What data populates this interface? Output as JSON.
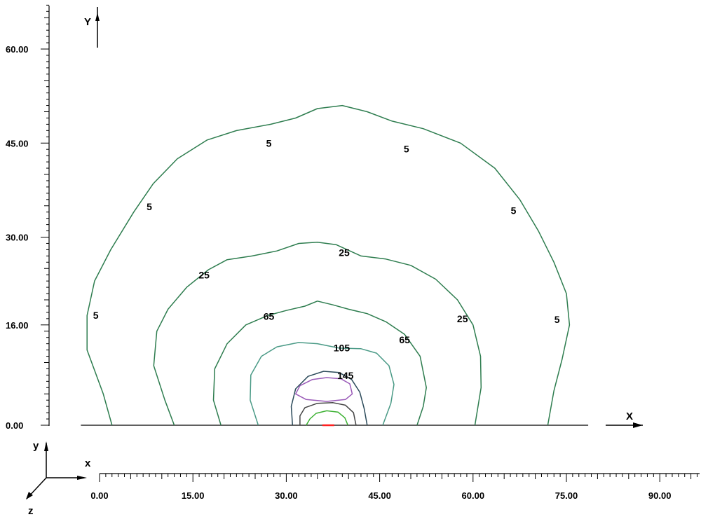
{
  "chart_data": {
    "type": "contour",
    "title": "",
    "xlabel": "X",
    "ylabel": "Y",
    "xlim": [
      -2,
      96
    ],
    "ylim": [
      0,
      67
    ],
    "x_ticks": [
      0,
      15,
      30,
      45,
      60,
      75,
      90
    ],
    "x_tick_labels": [
      "0.00",
      "15.00",
      "30.00",
      "45.00",
      "60.00",
      "75.00",
      "90.00"
    ],
    "y_ticks": [
      0,
      16,
      30,
      45,
      60
    ],
    "y_tick_labels": [
      "0.00",
      "16.00",
      "30.00",
      "45.00",
      "60.00"
    ],
    "series": [
      {
        "name": "5",
        "color": "#2e7d4f",
        "points": [
          [
            2,
            0
          ],
          [
            0.6,
            5
          ],
          [
            -2,
            12
          ],
          [
            -2,
            17.5
          ],
          [
            -0.8,
            23
          ],
          [
            1.8,
            28
          ],
          [
            5.5,
            34
          ],
          [
            8.6,
            38.5
          ],
          [
            12.5,
            42.5
          ],
          [
            17.3,
            45.5
          ],
          [
            22,
            47
          ],
          [
            27.5,
            48
          ],
          [
            31.5,
            49
          ],
          [
            35,
            50.5
          ],
          [
            39,
            51
          ],
          [
            43,
            50
          ],
          [
            47,
            48.5
          ],
          [
            52,
            47.3
          ],
          [
            58,
            45
          ],
          [
            63.5,
            41
          ],
          [
            67.5,
            36
          ],
          [
            70.5,
            31
          ],
          [
            73,
            26
          ],
          [
            75,
            21
          ],
          [
            75.5,
            16
          ],
          [
            74.3,
            10.5
          ],
          [
            73,
            5.5
          ],
          [
            72,
            0
          ]
        ]
      },
      {
        "name": "25",
        "color": "#2e7d4f",
        "points": [
          [
            12,
            0
          ],
          [
            10.5,
            4
          ],
          [
            8.7,
            9.5
          ],
          [
            9.2,
            15
          ],
          [
            11,
            18.5
          ],
          [
            14,
            22
          ],
          [
            17.5,
            24.8
          ],
          [
            20.5,
            26.4
          ],
          [
            24.5,
            27
          ],
          [
            28.5,
            27.8
          ],
          [
            32,
            29
          ],
          [
            35,
            29.2
          ],
          [
            38,
            28.8
          ],
          [
            42,
            27
          ],
          [
            46,
            26.5
          ],
          [
            50,
            25.5
          ],
          [
            54,
            23.3
          ],
          [
            57.5,
            20
          ],
          [
            60,
            16
          ],
          [
            61.2,
            11
          ],
          [
            61.3,
            6
          ],
          [
            60.3,
            0
          ]
        ]
      },
      {
        "name": "65",
        "color": "#2e7d4f",
        "points": [
          [
            19.5,
            0
          ],
          [
            18.3,
            4
          ],
          [
            18.5,
            9
          ],
          [
            20.5,
            13
          ],
          [
            23.5,
            16
          ],
          [
            27,
            17.5
          ],
          [
            30,
            18.3
          ],
          [
            33,
            19
          ],
          [
            35,
            19.8
          ],
          [
            37.5,
            19.2
          ],
          [
            40,
            18.5
          ],
          [
            43,
            17.8
          ],
          [
            46,
            16.5
          ],
          [
            49,
            14.5
          ],
          [
            51.5,
            11
          ],
          [
            52.5,
            6
          ],
          [
            52,
            3
          ],
          [
            51,
            0
          ]
        ]
      },
      {
        "name": "105",
        "color": "#4a9a86",
        "points": [
          [
            25.5,
            0
          ],
          [
            24.2,
            4
          ],
          [
            24.3,
            8
          ],
          [
            26,
            11
          ],
          [
            28.5,
            12.5
          ],
          [
            32,
            13.2
          ],
          [
            35,
            13
          ],
          [
            38.5,
            12.3
          ],
          [
            42,
            12.2
          ],
          [
            44.5,
            11.5
          ],
          [
            46.5,
            9.5
          ],
          [
            47.3,
            6.5
          ],
          [
            46.8,
            3.5
          ],
          [
            45.5,
            0
          ]
        ]
      },
      {
        "name": "145",
        "color": "#2b4a5a",
        "points": [
          [
            31,
            0
          ],
          [
            30.8,
            3
          ],
          [
            31.5,
            5.8
          ],
          [
            33.5,
            7.8
          ],
          [
            36,
            8.6
          ],
          [
            38.5,
            8.4
          ],
          [
            40.5,
            7.3
          ],
          [
            41.8,
            5.3
          ],
          [
            42.5,
            2.7
          ],
          [
            43,
            0
          ]
        ]
      },
      {
        "name": "",
        "color": "#9a5ab8",
        "closed": true,
        "points": [
          [
            31.5,
            5
          ],
          [
            32.2,
            6.3
          ],
          [
            34.2,
            7.3
          ],
          [
            36.5,
            7.6
          ],
          [
            38.8,
            7.4
          ],
          [
            40.2,
            6.6
          ],
          [
            40.6,
            5
          ],
          [
            39.5,
            4.1
          ],
          [
            36.5,
            3.8
          ],
          [
            33.2,
            4.1
          ]
        ]
      },
      {
        "name": "",
        "color": "#444444",
        "points": [
          [
            32.2,
            0
          ],
          [
            32.2,
            1.5
          ],
          [
            33,
            2.8
          ],
          [
            35,
            3.5
          ],
          [
            37.5,
            3.6
          ],
          [
            39.5,
            3.2
          ],
          [
            40.8,
            2
          ],
          [
            41.2,
            0
          ]
        ]
      },
      {
        "name": "",
        "color": "#3ab030",
        "points": [
          [
            33.2,
            0
          ],
          [
            33.8,
            1
          ],
          [
            34.8,
            1.9
          ],
          [
            36.5,
            2.3
          ],
          [
            38.3,
            2.1
          ],
          [
            39.4,
            1.2
          ],
          [
            39.9,
            0
          ]
        ]
      },
      {
        "name": "",
        "color": "#ff2020",
        "points": [
          [
            35.8,
            0
          ],
          [
            37.7,
            0
          ]
        ]
      }
    ],
    "labels": [
      {
        "text": "5",
        "x": 27.2,
        "y": 44.4
      },
      {
        "text": "5",
        "x": 49.3,
        "y": 43.5
      },
      {
        "text": "5",
        "x": 8.0,
        "y": 34.3
      },
      {
        "text": "5",
        "x": 66.5,
        "y": 33.7
      },
      {
        "text": "5",
        "x": -0.6,
        "y": 17.0
      },
      {
        "text": "5",
        "x": 73.5,
        "y": 16.3
      },
      {
        "text": "25",
        "x": 16.8,
        "y": 23.4
      },
      {
        "text": "25",
        "x": 39.3,
        "y": 27.0
      },
      {
        "text": "25",
        "x": 58.3,
        "y": 16.4
      },
      {
        "text": "65",
        "x": 27.2,
        "y": 16.8
      },
      {
        "text": "65",
        "x": 49.0,
        "y": 13.1
      },
      {
        "text": "105",
        "x": 38.9,
        "y": 11.8
      },
      {
        "text": "145",
        "x": 39.5,
        "y": 7.4
      }
    ]
  },
  "axes": {
    "y_arrow_label": "Y",
    "x_arrow_label": "X",
    "triad": {
      "y": "y",
      "x": "x",
      "z": "z"
    }
  }
}
